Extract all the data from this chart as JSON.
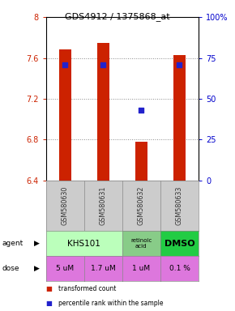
{
  "title": "GDS4912 / 1375868_at",
  "samples": [
    "GSM580630",
    "GSM580631",
    "GSM580632",
    "GSM580633"
  ],
  "bar_values": [
    7.68,
    7.75,
    6.78,
    7.63
  ],
  "bar_bottom": 6.4,
  "percentile_values": [
    71,
    71,
    43,
    71
  ],
  "bar_color": "#cc2200",
  "dot_color": "#2222cc",
  "ylim_min": 6.4,
  "ylim_max": 8.0,
  "yticks": [
    6.4,
    6.8,
    7.2,
    7.6,
    8.0
  ],
  "ytick_labels": [
    "6.4",
    "6.8",
    "7.2",
    "7.6",
    "8"
  ],
  "right_yticks": [
    0,
    25,
    50,
    75,
    100
  ],
  "right_ytick_labels": [
    "0",
    "25",
    "50",
    "75",
    "100%"
  ],
  "dose_labels": [
    "5 uM",
    "1.7 uM",
    "1 uM",
    "0.1 %"
  ],
  "dose_color": "#dd77dd",
  "agent_khs_color": "#bbffbb",
  "agent_ret_color": "#88cc88",
  "agent_dmso_color": "#22cc44",
  "sample_bg_color": "#cccccc",
  "background_color": "#ffffff",
  "left_axis_color": "#cc2200",
  "right_axis_color": "#0000cc",
  "bar_width": 0.32
}
